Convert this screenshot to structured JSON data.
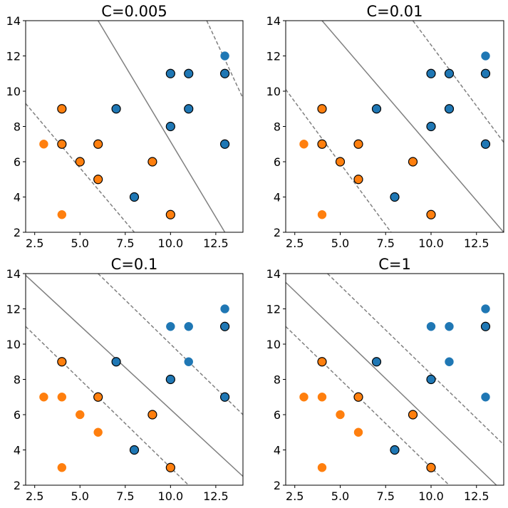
{
  "chart_data": [
    {
      "type": "scatter",
      "title": "C=0.005",
      "xlabel": "",
      "ylabel": "",
      "xlim": [
        2,
        14
      ],
      "ylim": [
        2,
        14
      ],
      "xticks": [
        2.5,
        5.0,
        7.5,
        10.0,
        12.5
      ],
      "xtick_labels": [
        "2.5",
        "5.0",
        "7.5",
        "10.0",
        "12.5"
      ],
      "yticks": [
        2,
        4,
        6,
        8,
        10,
        12,
        14
      ],
      "ytick_labels": [
        "2",
        "4",
        "6",
        "8",
        "10",
        "12",
        "14"
      ],
      "series": [
        {
          "color": "#1f77b4",
          "points": [
            [
              7,
              9
            ],
            [
              8,
              4
            ],
            [
              10,
              8
            ],
            [
              10,
              11
            ],
            [
              11,
              9
            ],
            [
              11,
              11
            ],
            [
              13,
              7
            ],
            [
              13,
              11
            ],
            [
              13,
              12
            ]
          ],
          "edged": [
            true,
            true,
            true,
            true,
            true,
            true,
            true,
            true,
            false
          ]
        },
        {
          "color": "#ff7f0e",
          "points": [
            [
              3,
              7
            ],
            [
              4,
              3
            ],
            [
              4,
              7
            ],
            [
              4,
              9
            ],
            [
              5,
              6
            ],
            [
              6,
              5
            ],
            [
              6,
              7
            ],
            [
              9,
              6
            ],
            [
              10,
              3
            ]
          ],
          "edged": [
            false,
            false,
            true,
            true,
            true,
            true,
            true,
            true,
            true
          ]
        }
      ],
      "lines": [
        {
          "style": "solid",
          "color": "#808080",
          "x": [
            6.0,
            13.0
          ],
          "y": [
            14,
            2
          ]
        },
        {
          "style": "dashed",
          "color": "#808080",
          "x": [
            2.0,
            8.0
          ],
          "y": [
            9.3,
            2
          ]
        },
        {
          "style": "dashed",
          "color": "#808080",
          "x": [
            12.0,
            14.0
          ],
          "y": [
            14,
            9.6
          ]
        }
      ]
    },
    {
      "type": "scatter",
      "title": "C=0.01",
      "xlabel": "",
      "ylabel": "",
      "xlim": [
        2,
        14
      ],
      "ylim": [
        2,
        14
      ],
      "xticks": [
        2.5,
        5.0,
        7.5,
        10.0,
        12.5
      ],
      "xtick_labels": [
        "2.5",
        "5.0",
        "7.5",
        "10.0",
        "12.5"
      ],
      "yticks": [
        2,
        4,
        6,
        8,
        10,
        12,
        14
      ],
      "ytick_labels": [
        "2",
        "4",
        "6",
        "8",
        "10",
        "12",
        "14"
      ],
      "series": [
        {
          "color": "#1f77b4",
          "points": [
            [
              7,
              9
            ],
            [
              8,
              4
            ],
            [
              10,
              8
            ],
            [
              10,
              11
            ],
            [
              11,
              9
            ],
            [
              11,
              11
            ],
            [
              13,
              7
            ],
            [
              13,
              11
            ],
            [
              13,
              12
            ]
          ],
          "edged": [
            true,
            true,
            true,
            true,
            true,
            true,
            true,
            true,
            false
          ]
        },
        {
          "color": "#ff7f0e",
          "points": [
            [
              3,
              7
            ],
            [
              4,
              3
            ],
            [
              4,
              7
            ],
            [
              4,
              9
            ],
            [
              5,
              6
            ],
            [
              6,
              5
            ],
            [
              6,
              7
            ],
            [
              9,
              6
            ],
            [
              10,
              3
            ]
          ],
          "edged": [
            false,
            false,
            true,
            true,
            true,
            true,
            true,
            true,
            true
          ]
        }
      ],
      "lines": [
        {
          "style": "solid",
          "color": "#808080",
          "x": [
            4.0,
            14.0
          ],
          "y": [
            14,
            2
          ]
        },
        {
          "style": "dashed",
          "color": "#808080",
          "x": [
            2.0,
            7.8
          ],
          "y": [
            10.1,
            2
          ]
        },
        {
          "style": "dashed",
          "color": "#808080",
          "x": [
            9.0,
            14.0
          ],
          "y": [
            14,
            7.1
          ]
        }
      ]
    },
    {
      "type": "scatter",
      "title": "C=0.1",
      "xlabel": "",
      "ylabel": "",
      "xlim": [
        2,
        14
      ],
      "ylim": [
        2,
        14
      ],
      "xticks": [
        2.5,
        5.0,
        7.5,
        10.0,
        12.5
      ],
      "xtick_labels": [
        "2.5",
        "5.0",
        "7.5",
        "10.0",
        "12.5"
      ],
      "yticks": [
        2,
        4,
        6,
        8,
        10,
        12,
        14
      ],
      "ytick_labels": [
        "2",
        "4",
        "6",
        "8",
        "10",
        "12",
        "14"
      ],
      "series": [
        {
          "color": "#1f77b4",
          "points": [
            [
              7,
              9
            ],
            [
              8,
              4
            ],
            [
              10,
              8
            ],
            [
              10,
              11
            ],
            [
              11,
              9
            ],
            [
              11,
              11
            ],
            [
              13,
              7
            ],
            [
              13,
              11
            ],
            [
              13,
              12
            ]
          ],
          "edged": [
            true,
            true,
            true,
            false,
            false,
            false,
            true,
            true,
            false
          ]
        },
        {
          "color": "#ff7f0e",
          "points": [
            [
              3,
              7
            ],
            [
              4,
              3
            ],
            [
              4,
              7
            ],
            [
              4,
              9
            ],
            [
              5,
              6
            ],
            [
              6,
              5
            ],
            [
              6,
              7
            ],
            [
              9,
              6
            ],
            [
              10,
              3
            ]
          ],
          "edged": [
            false,
            false,
            false,
            true,
            false,
            false,
            true,
            true,
            true
          ]
        }
      ],
      "lines": [
        {
          "style": "solid",
          "color": "#808080",
          "x": [
            2.0,
            14.0
          ],
          "y": [
            13.9,
            2.5
          ]
        },
        {
          "style": "dashed",
          "color": "#808080",
          "x": [
            2.0,
            11.0
          ],
          "y": [
            11.0,
            2
          ]
        },
        {
          "style": "dashed",
          "color": "#808080",
          "x": [
            6.0,
            14.0
          ],
          "y": [
            14,
            6.0
          ]
        }
      ]
    },
    {
      "type": "scatter",
      "title": "C=1",
      "xlabel": "",
      "ylabel": "",
      "xlim": [
        2,
        14
      ],
      "ylim": [
        2,
        14
      ],
      "xticks": [
        2.5,
        5.0,
        7.5,
        10.0,
        12.5
      ],
      "xtick_labels": [
        "2.5",
        "5.0",
        "7.5",
        "10.0",
        "12.5"
      ],
      "yticks": [
        2,
        4,
        6,
        8,
        10,
        12,
        14
      ],
      "ytick_labels": [
        "2",
        "4",
        "6",
        "8",
        "10",
        "12",
        "14"
      ],
      "series": [
        {
          "color": "#1f77b4",
          "points": [
            [
              7,
              9
            ],
            [
              8,
              4
            ],
            [
              10,
              8
            ],
            [
              10,
              11
            ],
            [
              11,
              9
            ],
            [
              11,
              11
            ],
            [
              13,
              7
            ],
            [
              13,
              11
            ],
            [
              13,
              12
            ]
          ],
          "edged": [
            true,
            true,
            true,
            false,
            false,
            false,
            false,
            true,
            false
          ]
        },
        {
          "color": "#ff7f0e",
          "points": [
            [
              3,
              7
            ],
            [
              4,
              3
            ],
            [
              4,
              7
            ],
            [
              4,
              9
            ],
            [
              5,
              6
            ],
            [
              6,
              5
            ],
            [
              6,
              7
            ],
            [
              9,
              6
            ],
            [
              10,
              3
            ]
          ],
          "edged": [
            false,
            false,
            false,
            true,
            false,
            false,
            true,
            true,
            true
          ]
        }
      ],
      "lines": [
        {
          "style": "solid",
          "color": "#808080",
          "x": [
            2.0,
            13.6
          ],
          "y": [
            13.5,
            2
          ]
        },
        {
          "style": "dashed",
          "color": "#808080",
          "x": [
            2.0,
            11.0
          ],
          "y": [
            11.0,
            2
          ]
        },
        {
          "style": "dashed",
          "color": "#808080",
          "x": [
            4.3,
            14.0
          ],
          "y": [
            14,
            4.3
          ]
        }
      ]
    }
  ]
}
